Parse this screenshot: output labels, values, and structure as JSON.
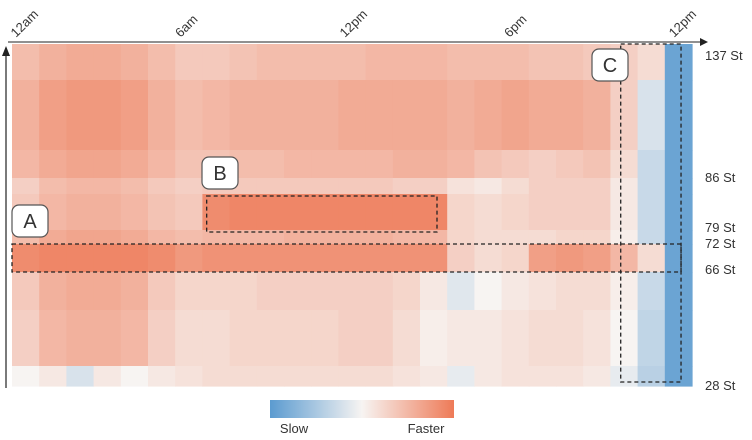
{
  "chart_data": {
    "type": "heatmap",
    "title": "",
    "xlabel": "",
    "ylabel": "",
    "x_ticks": [
      {
        "label": "12am",
        "hour": 0
      },
      {
        "label": "6am",
        "hour": 6
      },
      {
        "label": "12pm",
        "hour": 12
      },
      {
        "label": "6pm",
        "hour": 18
      },
      {
        "label": "12pm",
        "hour": 24
      }
    ],
    "xlim": [
      0,
      24.8
    ],
    "y_ticks": [
      "137 St",
      "86 St",
      "79 St",
      "72 St",
      "66 St",
      "28 St"
    ],
    "y_order": "top-to-bottom",
    "colorscale": {
      "low_label": "Slow",
      "high_label": "Faster",
      "low_color": "#5b9bd0",
      "mid_color": "#f7f4f2",
      "high_color": "#ee7a57"
    },
    "rows": [
      {
        "station_band": "137 St",
        "speed": [
          0.45,
          0.55,
          0.6,
          0.6,
          0.55,
          0.45,
          0.35,
          0.35,
          0.4,
          0.45,
          0.45,
          0.45,
          0.45,
          0.5,
          0.5,
          0.5,
          0.45,
          0.45,
          0.45,
          0.4,
          0.4,
          0.35,
          0.3,
          0.2,
          -0.9
        ]
      },
      {
        "station_band": "between 137 St and 86 St",
        "speed": [
          0.55,
          0.7,
          0.75,
          0.75,
          0.7,
          0.55,
          0.45,
          0.5,
          0.55,
          0.55,
          0.55,
          0.55,
          0.6,
          0.6,
          0.6,
          0.6,
          0.55,
          0.6,
          0.65,
          0.6,
          0.6,
          0.55,
          0.3,
          -0.2,
          -0.9
        ]
      },
      {
        "station_band": "between 137 St and 86 St",
        "speed": [
          0.5,
          0.6,
          0.65,
          0.65,
          0.6,
          0.5,
          0.4,
          0.4,
          0.45,
          0.45,
          0.5,
          0.5,
          0.5,
          0.5,
          0.55,
          0.55,
          0.5,
          0.4,
          0.35,
          0.3,
          0.35,
          0.4,
          0.2,
          -0.3,
          -0.9
        ]
      },
      {
        "station_band": "86 St",
        "speed": [
          0.3,
          0.45,
          0.5,
          0.5,
          0.45,
          0.35,
          0.3,
          0.35,
          0.35,
          0.35,
          0.35,
          0.35,
          0.35,
          0.35,
          0.3,
          0.3,
          0.15,
          0.1,
          0.2,
          0.3,
          0.3,
          0.3,
          0.1,
          -0.3,
          -0.9
        ]
      },
      {
        "station_band": "79 St",
        "speed": [
          0.35,
          0.5,
          0.55,
          0.55,
          0.5,
          0.4,
          0.35,
          0.85,
          0.9,
          0.9,
          0.9,
          0.9,
          0.9,
          0.9,
          0.9,
          0.9,
          0.25,
          0.2,
          0.25,
          0.3,
          0.3,
          0.3,
          0.1,
          -0.3,
          -0.9
        ]
      },
      {
        "station_band": "72 St",
        "speed": [
          0.45,
          0.6,
          0.65,
          0.65,
          0.6,
          0.5,
          0.45,
          0.5,
          0.5,
          0.5,
          0.55,
          0.55,
          0.55,
          0.55,
          0.5,
          0.5,
          0.25,
          0.2,
          0.2,
          0.2,
          0.25,
          0.25,
          0.05,
          -0.3,
          -0.9
        ]
      },
      {
        "station_band": "66 St",
        "speed": [
          0.85,
          0.9,
          0.9,
          0.9,
          0.9,
          0.85,
          0.75,
          0.8,
          0.8,
          0.8,
          0.8,
          0.8,
          0.8,
          0.8,
          0.8,
          0.8,
          0.3,
          0.2,
          0.25,
          0.7,
          0.75,
          0.7,
          0.5,
          0.2,
          -0.9
        ]
      },
      {
        "station_band": "between 66 St and 28 St",
        "speed": [
          0.35,
          0.55,
          0.6,
          0.6,
          0.55,
          0.35,
          0.25,
          0.25,
          0.25,
          0.3,
          0.3,
          0.3,
          0.3,
          0.3,
          0.25,
          0.1,
          -0.15,
          0.0,
          0.1,
          0.15,
          0.2,
          0.2,
          0.05,
          -0.3,
          -0.9
        ]
      },
      {
        "station_band": "between 66 St and 28 St",
        "speed": [
          0.3,
          0.5,
          0.55,
          0.55,
          0.5,
          0.3,
          0.2,
          0.2,
          0.25,
          0.25,
          0.25,
          0.25,
          0.3,
          0.3,
          0.2,
          0.05,
          0.1,
          0.1,
          0.15,
          0.2,
          0.2,
          0.15,
          0.0,
          -0.35,
          -0.9
        ]
      },
      {
        "station_band": "28 St",
        "speed": [
          0.0,
          0.1,
          -0.2,
          0.1,
          0.0,
          0.1,
          0.15,
          0.2,
          0.2,
          0.2,
          0.2,
          0.2,
          0.2,
          0.2,
          0.15,
          0.1,
          -0.1,
          0.1,
          0.15,
          0.15,
          0.15,
          0.1,
          -0.1,
          -0.4,
          -0.9
        ]
      }
    ],
    "annotations": [
      {
        "label": "A",
        "x_range": [
          0,
          24.4
        ],
        "rows": "66 St band"
      },
      {
        "label": "B",
        "x_range": [
          7.1,
          15.5
        ],
        "rows": "79 St band"
      },
      {
        "label": "C",
        "x_range": [
          22.2,
          24.4
        ],
        "rows": "all"
      }
    ]
  }
}
